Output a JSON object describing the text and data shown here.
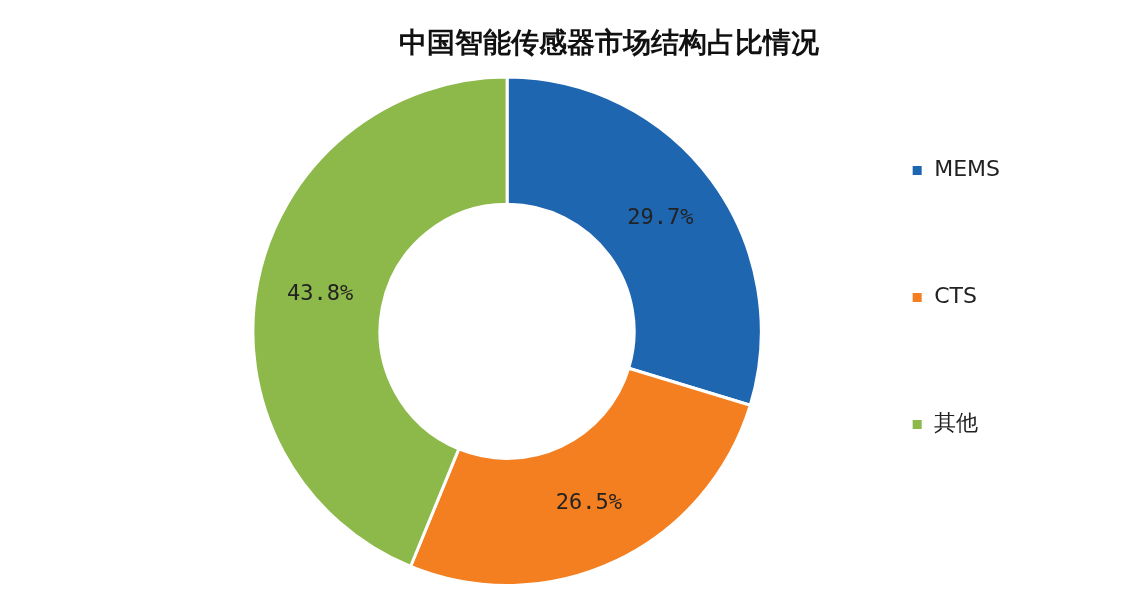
{
  "chart_data": {
    "type": "donut",
    "title": "中国智能传感器市场结构占比情况",
    "categories": [
      "MEMS",
      "CTS",
      "其他"
    ],
    "values": [
      29.7,
      26.5,
      43.8
    ],
    "colors": [
      "#1f66b0",
      "#f47f20",
      "#8db84a"
    ],
    "value_labels": [
      "29.7%",
      "26.5%",
      "43.8%"
    ],
    "legend": "right"
  }
}
